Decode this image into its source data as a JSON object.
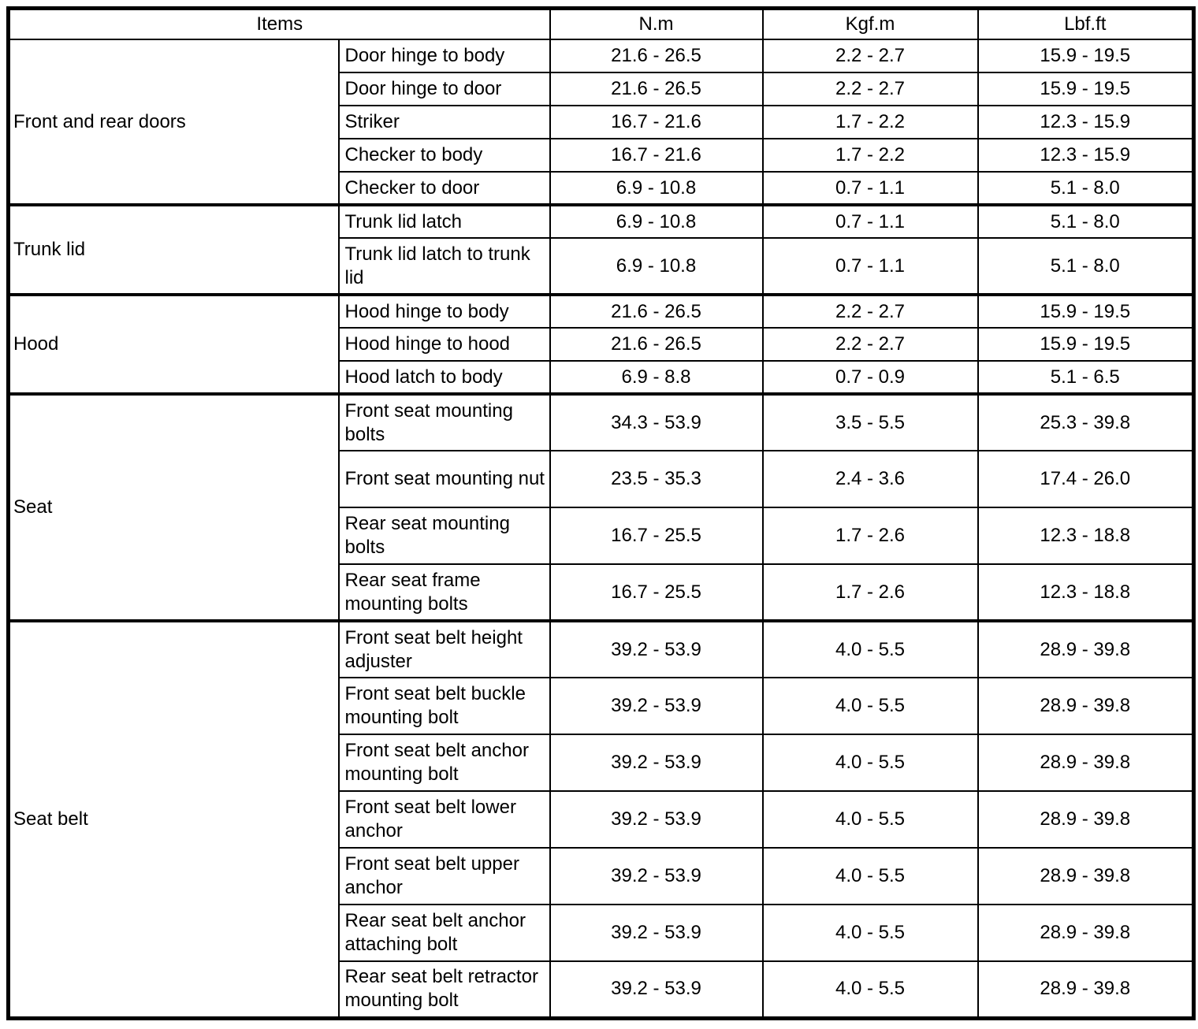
{
  "table": {
    "headers": {
      "items": "Items",
      "nm": "N.m",
      "kgfm": "Kgf.m",
      "lbfft": "Lbf.ft"
    },
    "groups": [
      {
        "name": "Front and rear doors",
        "rows": [
          {
            "item": "Door hinge to body",
            "nm": "21.6 - 26.5",
            "kgfm": "2.2 - 2.7",
            "lbfft": "15.9 - 19.5",
            "tall": false
          },
          {
            "item": "Door hinge to door",
            "nm": "21.6 - 26.5",
            "kgfm": "2.2 - 2.7",
            "lbfft": "15.9 - 19.5",
            "tall": false
          },
          {
            "item": "Striker",
            "nm": "16.7 - 21.6",
            "kgfm": "1.7 - 2.2",
            "lbfft": "12.3 - 15.9",
            "tall": false
          },
          {
            "item": "Checker to body",
            "nm": "16.7 - 21.6",
            "kgfm": "1.7 - 2.2",
            "lbfft": "12.3 - 15.9",
            "tall": false
          },
          {
            "item": "Checker to door",
            "nm": "6.9 - 10.8",
            "kgfm": "0.7 - 1.1",
            "lbfft": "5.1 - 8.0",
            "tall": false
          }
        ]
      },
      {
        "name": "Trunk lid",
        "rows": [
          {
            "item": "Trunk lid latch",
            "nm": "6.9 - 10.8",
            "kgfm": "0.7 - 1.1",
            "lbfft": "5.1 - 8.0",
            "tall": false
          },
          {
            "item": "Trunk lid latch to trunk lid",
            "nm": "6.9 - 10.8",
            "kgfm": "0.7 - 1.1",
            "lbfft": "5.1 - 8.0",
            "tall": true
          }
        ]
      },
      {
        "name": "Hood",
        "rows": [
          {
            "item": "Hood hinge to body",
            "nm": "21.6 - 26.5",
            "kgfm": "2.2 - 2.7",
            "lbfft": "15.9 - 19.5",
            "tall": false
          },
          {
            "item": "Hood hinge to hood",
            "nm": "21.6 - 26.5",
            "kgfm": "2.2 - 2.7",
            "lbfft": "15.9 - 19.5",
            "tall": false
          },
          {
            "item": "Hood latch to body",
            "nm": "6.9 - 8.8",
            "kgfm": "0.7 - 0.9",
            "lbfft": "5.1 - 6.5",
            "tall": false
          }
        ]
      },
      {
        "name": "Seat",
        "rows": [
          {
            "item": "Front seat mounting bolts",
            "nm": "34.3 - 53.9",
            "kgfm": "3.5 - 5.5",
            "lbfft": "25.3 - 39.8",
            "tall": true
          },
          {
            "item": "Front seat mounting nut",
            "nm": "23.5 - 35.3",
            "kgfm": "2.4 - 3.6",
            "lbfft": "17.4 - 26.0",
            "tall": true
          },
          {
            "item": "Rear seat mounting bolts",
            "nm": "16.7 - 25.5",
            "kgfm": "1.7 - 2.6",
            "lbfft": "12.3 - 18.8",
            "tall": true
          },
          {
            "item": "Rear seat frame mounting bolts",
            "nm": "16.7 - 25.5",
            "kgfm": "1.7 - 2.6",
            "lbfft": "12.3 - 18.8",
            "tall": true
          }
        ]
      },
      {
        "name": "Seat belt",
        "rows": [
          {
            "item": "Front seat belt height adjuster",
            "nm": "39.2 - 53.9",
            "kgfm": "4.0 - 5.5",
            "lbfft": "28.9 - 39.8",
            "tall": true
          },
          {
            "item": "Front seat belt buckle mounting bolt",
            "nm": "39.2 - 53.9",
            "kgfm": "4.0 - 5.5",
            "lbfft": "28.9 - 39.8",
            "tall": true
          },
          {
            "item": "Front seat belt anchor mounting bolt",
            "nm": "39.2 - 53.9",
            "kgfm": "4.0 - 5.5",
            "lbfft": "28.9 - 39.8",
            "tall": true
          },
          {
            "item": "Front seat belt lower anchor",
            "nm": "39.2 - 53.9",
            "kgfm": "4.0 - 5.5",
            "lbfft": "28.9 - 39.8",
            "tall": true
          },
          {
            "item": "Front seat belt upper anchor",
            "nm": "39.2 - 53.9",
            "kgfm": "4.0 - 5.5",
            "lbfft": "28.9 - 39.8",
            "tall": true
          },
          {
            "item": "Rear seat belt anchor attaching bolt",
            "nm": "39.2 - 53.9",
            "kgfm": "4.0 - 5.5",
            "lbfft": "28.9 - 39.8",
            "tall": true
          },
          {
            "item": "Rear seat belt retractor mounting bolt",
            "nm": "39.2 - 53.9",
            "kgfm": "4.0 - 5.5",
            "lbfft": "28.9 - 39.8",
            "tall": true
          }
        ]
      }
    ]
  }
}
